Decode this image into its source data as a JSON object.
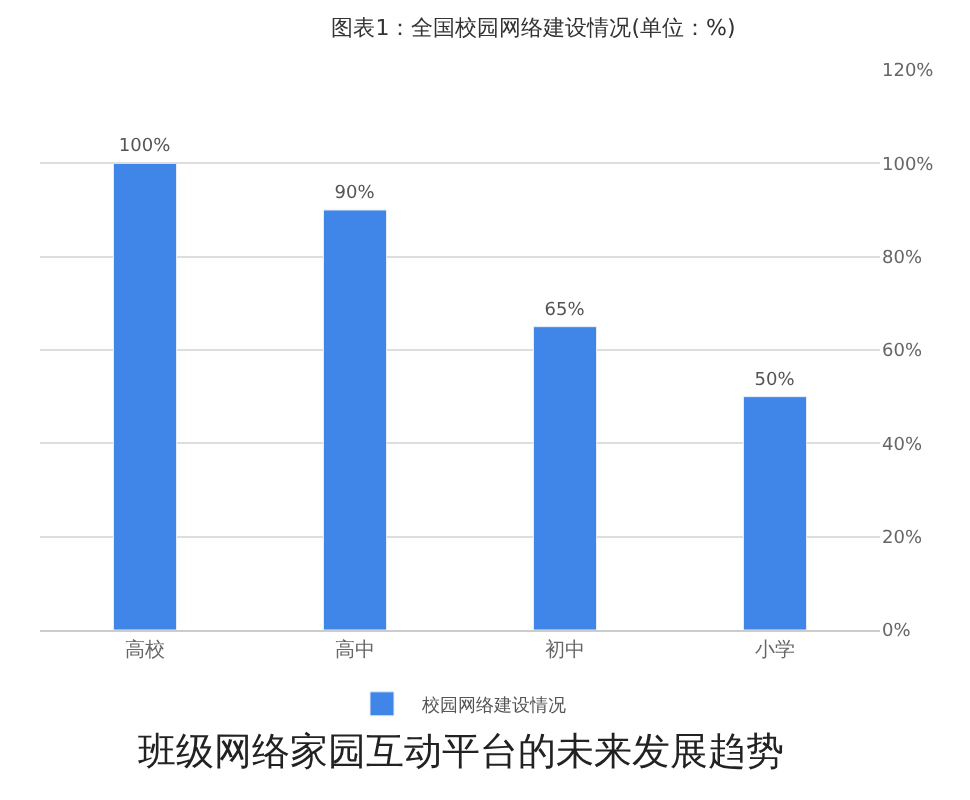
{
  "chart_data": {
    "type": "bar",
    "title": "图表1：全国校园网络建设情况(单位：%)",
    "categories": [
      "高校",
      "高中",
      "初中",
      "小学"
    ],
    "series": [
      {
        "name": "校园网络建设情况",
        "color": "#3f86e8",
        "values": [
          100,
          90,
          65,
          50
        ]
      }
    ],
    "value_labels": [
      "100%",
      "90%",
      "65%",
      "50%"
    ],
    "ylim": [
      0,
      120
    ],
    "yticks": [
      {
        "value": 0,
        "label": "0%"
      },
      {
        "value": 20,
        "label": "20%"
      },
      {
        "value": 40,
        "label": "40%"
      },
      {
        "value": 60,
        "label": "60%"
      },
      {
        "value": 80,
        "label": "80%"
      },
      {
        "value": 100,
        "label": "100%"
      },
      {
        "value": 120,
        "label": "120%"
      }
    ],
    "grid": "y",
    "legend": "bottom",
    "annotations": [
      "班级网络家园互动平台的未来发展趋势"
    ]
  }
}
